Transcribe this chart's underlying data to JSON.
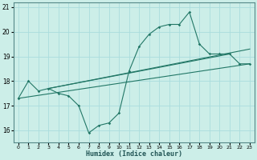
{
  "xlabel": "Humidex (Indice chaleur)",
  "ylabel": "",
  "bg_color": "#cceee8",
  "grid_color": "#aadddd",
  "line_color": "#227766",
  "xlim": [
    -0.5,
    23.5
  ],
  "ylim": [
    15.5,
    21.2
  ],
  "xticks": [
    0,
    1,
    2,
    3,
    4,
    5,
    6,
    7,
    8,
    9,
    10,
    11,
    12,
    13,
    14,
    15,
    16,
    17,
    18,
    19,
    20,
    21,
    22,
    23
  ],
  "yticks": [
    16,
    17,
    18,
    19,
    20,
    21
  ],
  "series": [
    [
      0,
      17.3
    ],
    [
      1,
      18.0
    ],
    [
      2,
      17.6
    ],
    [
      3,
      17.7
    ],
    [
      4,
      17.5
    ],
    [
      5,
      17.4
    ],
    [
      6,
      17.0
    ],
    [
      7,
      15.9
    ],
    [
      8,
      16.2
    ],
    [
      9,
      16.3
    ],
    [
      10,
      16.7
    ],
    [
      11,
      18.4
    ],
    [
      12,
      19.4
    ],
    [
      13,
      19.9
    ],
    [
      14,
      20.2
    ],
    [
      15,
      20.3
    ],
    [
      16,
      20.3
    ],
    [
      17,
      20.8
    ],
    [
      18,
      19.5
    ],
    [
      19,
      19.1
    ],
    [
      20,
      19.1
    ],
    [
      21,
      19.1
    ],
    [
      22,
      18.7
    ],
    [
      23,
      18.7
    ]
  ],
  "line2": [
    [
      0,
      17.3
    ],
    [
      23,
      18.7
    ]
  ],
  "line3": [
    [
      3,
      17.7
    ],
    [
      23,
      19.3
    ]
  ],
  "line4": [
    [
      3,
      17.7
    ],
    [
      21,
      19.1
    ]
  ]
}
